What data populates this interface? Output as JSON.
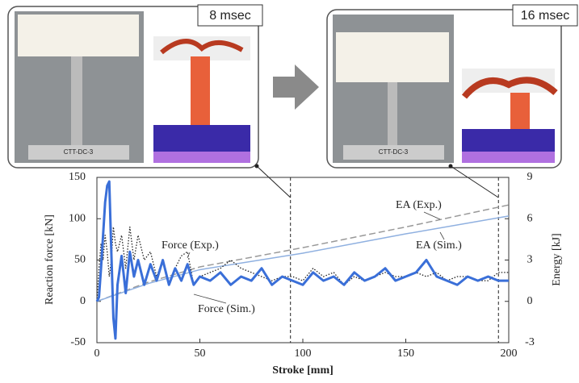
{
  "panels": [
    {
      "time": "8 msec",
      "specimen": "CTT-DC-3"
    },
    {
      "time": "16 msec",
      "specimen": "CTT-DC-3"
    }
  ],
  "chart_data": {
    "type": "line",
    "xlabel": "Stroke [mm]",
    "ylabel": "Reaction force [kN]",
    "y2label": "Energy [kJ]",
    "xlim": [
      0,
      200
    ],
    "xticks": [
      0,
      50,
      100,
      150,
      200
    ],
    "ylim": [
      -50,
      150
    ],
    "yticks": [
      -50,
      0,
      50,
      100,
      150
    ],
    "y2lim": [
      -3,
      9
    ],
    "y2ticks": [
      -3,
      0,
      3,
      6,
      9
    ],
    "markers": [
      94,
      195
    ],
    "series": [
      {
        "name": "Force (Exp.)",
        "color": "#222222",
        "style": "dotted",
        "x": [
          0,
          1,
          2,
          3,
          4,
          5,
          6,
          7,
          8,
          9,
          10,
          12,
          14,
          16,
          18,
          20,
          23,
          26,
          29,
          32,
          35,
          38,
          41,
          44,
          47,
          50,
          55,
          60,
          65,
          70,
          75,
          80,
          85,
          90,
          95,
          100,
          105,
          110,
          115,
          120,
          125,
          130,
          135,
          140,
          145,
          150,
          155,
          160,
          165,
          170,
          175,
          180,
          185,
          190,
          195,
          200
        ],
        "values": [
          0,
          40,
          70,
          50,
          80,
          60,
          30,
          50,
          90,
          70,
          60,
          80,
          40,
          90,
          50,
          80,
          50,
          60,
          30,
          50,
          20,
          40,
          55,
          60,
          20,
          30,
          35,
          40,
          50,
          40,
          35,
          30,
          25,
          30,
          30,
          25,
          40,
          30,
          35,
          20,
          30,
          25,
          30,
          35,
          30,
          30,
          35,
          30,
          35,
          25,
          30,
          30,
          25,
          25,
          35,
          35
        ]
      },
      {
        "name": "Force (Sim.)",
        "color": "#3a6fd8",
        "style": "solid",
        "x": [
          0,
          1,
          2,
          3,
          4,
          5,
          6,
          7,
          8,
          9,
          10,
          12,
          14,
          16,
          18,
          20,
          23,
          26,
          29,
          32,
          35,
          38,
          41,
          44,
          47,
          50,
          55,
          60,
          65,
          70,
          75,
          80,
          85,
          90,
          95,
          100,
          105,
          110,
          115,
          120,
          125,
          130,
          135,
          140,
          145,
          150,
          155,
          160,
          165,
          170,
          175,
          180,
          185,
          190,
          195,
          200
        ],
        "values": [
          0,
          5,
          40,
          80,
          120,
          140,
          145,
          60,
          -20,
          -45,
          20,
          55,
          10,
          60,
          30,
          50,
          20,
          45,
          25,
          50,
          20,
          40,
          25,
          45,
          20,
          30,
          25,
          35,
          20,
          30,
          25,
          40,
          20,
          30,
          25,
          20,
          35,
          25,
          30,
          20,
          35,
          25,
          30,
          40,
          25,
          30,
          35,
          50,
          30,
          25,
          20,
          30,
          25,
          30,
          25,
          25
        ]
      },
      {
        "name": "EA (Exp.)",
        "color": "#999999",
        "style": "dashed",
        "axis": "y2",
        "x": [
          0,
          25,
          50,
          100,
          150,
          200
        ],
        "values": [
          0,
          1.4,
          2.5,
          3.9,
          5.4,
          7.0
        ]
      },
      {
        "name": "EA (Sim.)",
        "color": "#8fb0e0",
        "style": "solid",
        "axis": "y2",
        "x": [
          0,
          25,
          50,
          100,
          150,
          200
        ],
        "values": [
          0,
          1.3,
          2.3,
          3.5,
          4.9,
          6.2
        ]
      }
    ]
  }
}
